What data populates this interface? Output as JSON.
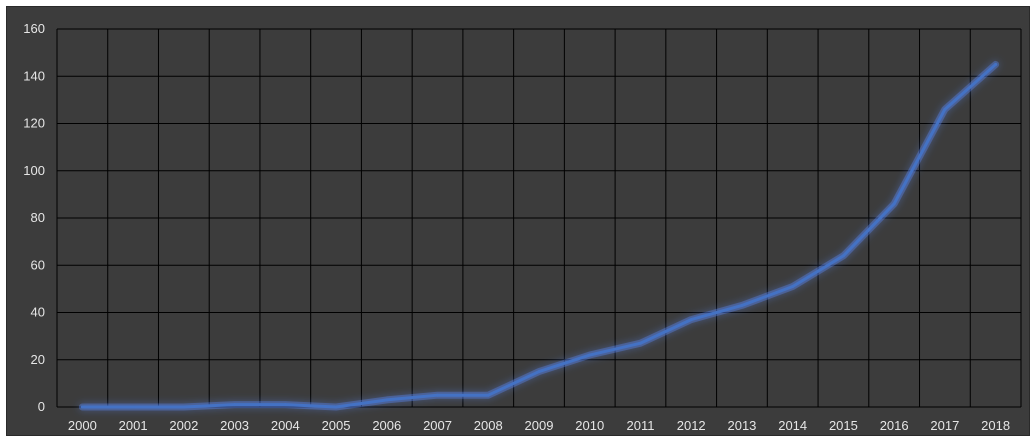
{
  "chart_data": {
    "type": "line",
    "title": "",
    "xlabel": "",
    "ylabel": "",
    "x": [
      "2000",
      "2001",
      "2002",
      "2003",
      "2004",
      "2005",
      "2006",
      "2007",
      "2008",
      "2009",
      "2010",
      "2011",
      "2012",
      "2013",
      "2014",
      "2015",
      "2016",
      "2017",
      "2018"
    ],
    "series": [
      {
        "name": "",
        "color": "#4472c4",
        "values": [
          0,
          0,
          0,
          1,
          1,
          0,
          3,
          5,
          5,
          15,
          22,
          27,
          37,
          43,
          51,
          64,
          86,
          126,
          145
        ]
      }
    ],
    "ylim": [
      0,
      160
    ],
    "yticks": [
      0,
      20,
      40,
      60,
      80,
      100,
      120,
      140,
      160
    ],
    "grid": true,
    "legend": "none",
    "colors": {
      "background": "#3c3c3c",
      "gridline": "#000000",
      "tick_text": "#e6e6e6",
      "line": "#4472c4",
      "glow": "#5b8cff"
    }
  }
}
